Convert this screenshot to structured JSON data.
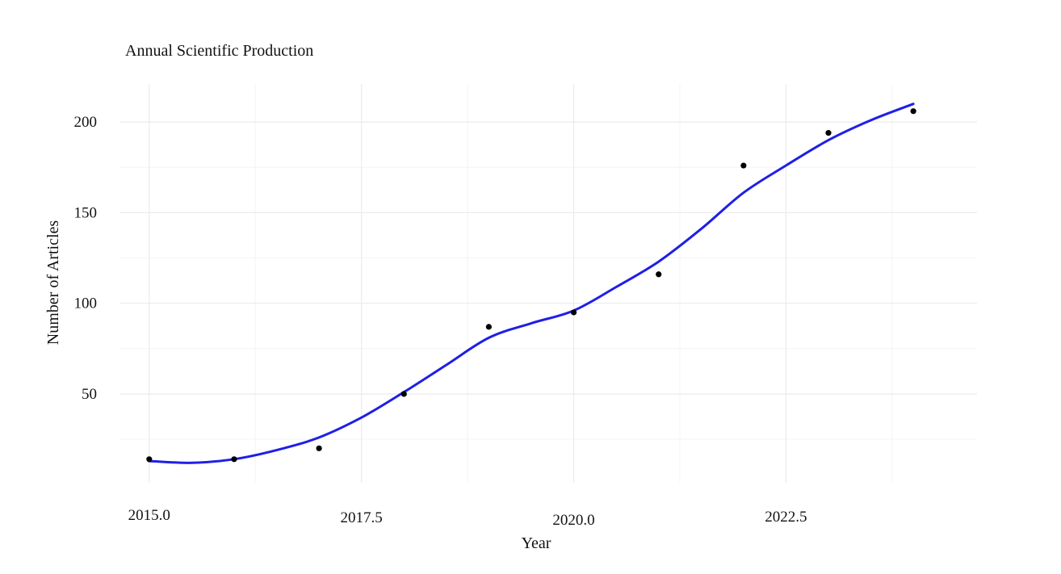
{
  "chart_data": {
    "type": "scatter",
    "title": "Annual Scientific Production",
    "xlabel": "Year",
    "ylabel": "Number of Articles",
    "x_ticks": [
      "2015.0",
      "2017.5",
      "2020.0",
      "2022.5"
    ],
    "y_ticks": [
      "50",
      "100",
      "150",
      "200"
    ],
    "xlim": [
      2014.65,
      2024.75
    ],
    "ylim": [
      1,
      221
    ],
    "grid": true,
    "points": {
      "x": [
        2015,
        2016,
        2017,
        2018,
        2019,
        2020,
        2021,
        2022,
        2023,
        2024
      ],
      "y": [
        14,
        14,
        20,
        50,
        87,
        95,
        116,
        176,
        194,
        206
      ]
    },
    "smooth_line": {
      "x": [
        2015,
        2015.5,
        2016,
        2016.5,
        2017,
        2017.5,
        2018,
        2018.5,
        2019,
        2019.5,
        2020,
        2020.5,
        2021,
        2021.5,
        2022,
        2022.5,
        2023,
        2023.5,
        2024
      ],
      "y": [
        13,
        12,
        14,
        19,
        26,
        37,
        51,
        66,
        81,
        89,
        96,
        109,
        123,
        141,
        161,
        176,
        190,
        201,
        210
      ]
    },
    "colors": {
      "line": "#1f1fe6",
      "points": "#000000",
      "grid_major": "#ebebeb",
      "grid_minor": "#f4f4f4"
    }
  }
}
